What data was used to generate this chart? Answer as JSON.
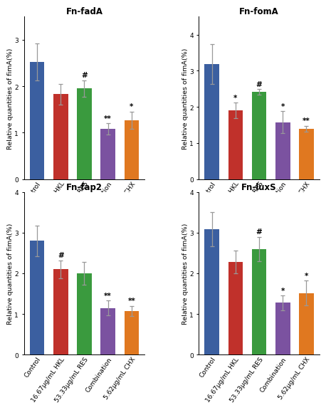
{
  "subplots": [
    {
      "title": "Fn-fadA",
      "ylabel": "Relative quantities of fimA(%)",
      "ylim": [
        0,
        3.5
      ],
      "yticks": [
        0,
        1,
        2,
        3
      ],
      "values": [
        2.52,
        1.83,
        1.95,
        1.08,
        1.27
      ],
      "errors": [
        0.4,
        0.22,
        0.18,
        0.12,
        0.18
      ],
      "significance": [
        "",
        "",
        "#",
        "**",
        "*"
      ]
    },
    {
      "title": "Fn-fomA",
      "ylabel": "Relative quantities of fimA(%)",
      "ylim": [
        0,
        4.5
      ],
      "yticks": [
        0,
        1,
        2,
        3,
        4
      ],
      "values": [
        3.18,
        1.9,
        2.42,
        1.58,
        1.4
      ],
      "errors": [
        0.55,
        0.22,
        0.08,
        0.3,
        0.08
      ],
      "significance": [
        "",
        "*",
        "#",
        "*",
        "**"
      ]
    },
    {
      "title": "Fn-fap2",
      "ylabel": "Relative quantities of fimA(%)",
      "ylim": [
        0,
        4.0
      ],
      "yticks": [
        0,
        1,
        2,
        3,
        4
      ],
      "values": [
        2.8,
        2.1,
        2.0,
        1.15,
        1.08
      ],
      "errors": [
        0.38,
        0.22,
        0.28,
        0.18,
        0.12
      ],
      "significance": [
        "",
        "#",
        "",
        "**",
        "**"
      ]
    },
    {
      "title": "Fn-luxS",
      "ylabel": "Relative quantities of fimA(%)",
      "ylim": [
        0,
        4.0
      ],
      "yticks": [
        0,
        1,
        2,
        3,
        4
      ],
      "values": [
        3.08,
        2.28,
        2.6,
        1.28,
        1.52
      ],
      "errors": [
        0.42,
        0.28,
        0.3,
        0.18,
        0.3
      ],
      "significance": [
        "",
        "",
        "#",
        "*",
        "*"
      ]
    }
  ],
  "bar_colors": [
    "#3b5fa0",
    "#c0312b",
    "#3a9a3e",
    "#7b52a0",
    "#e07820"
  ],
  "categories": [
    "Control",
    "16.67μg/mL HKL",
    "53.33μg/mL RES",
    "Combination",
    "5.62μg/mL CHX"
  ],
  "bar_width": 0.62,
  "title_fontsize": 8.5,
  "label_fontsize": 6.8,
  "tick_fontsize": 6.5,
  "sig_fontsize": 7.5,
  "error_color": "#999999",
  "capsize": 2.5,
  "rotation": 55
}
